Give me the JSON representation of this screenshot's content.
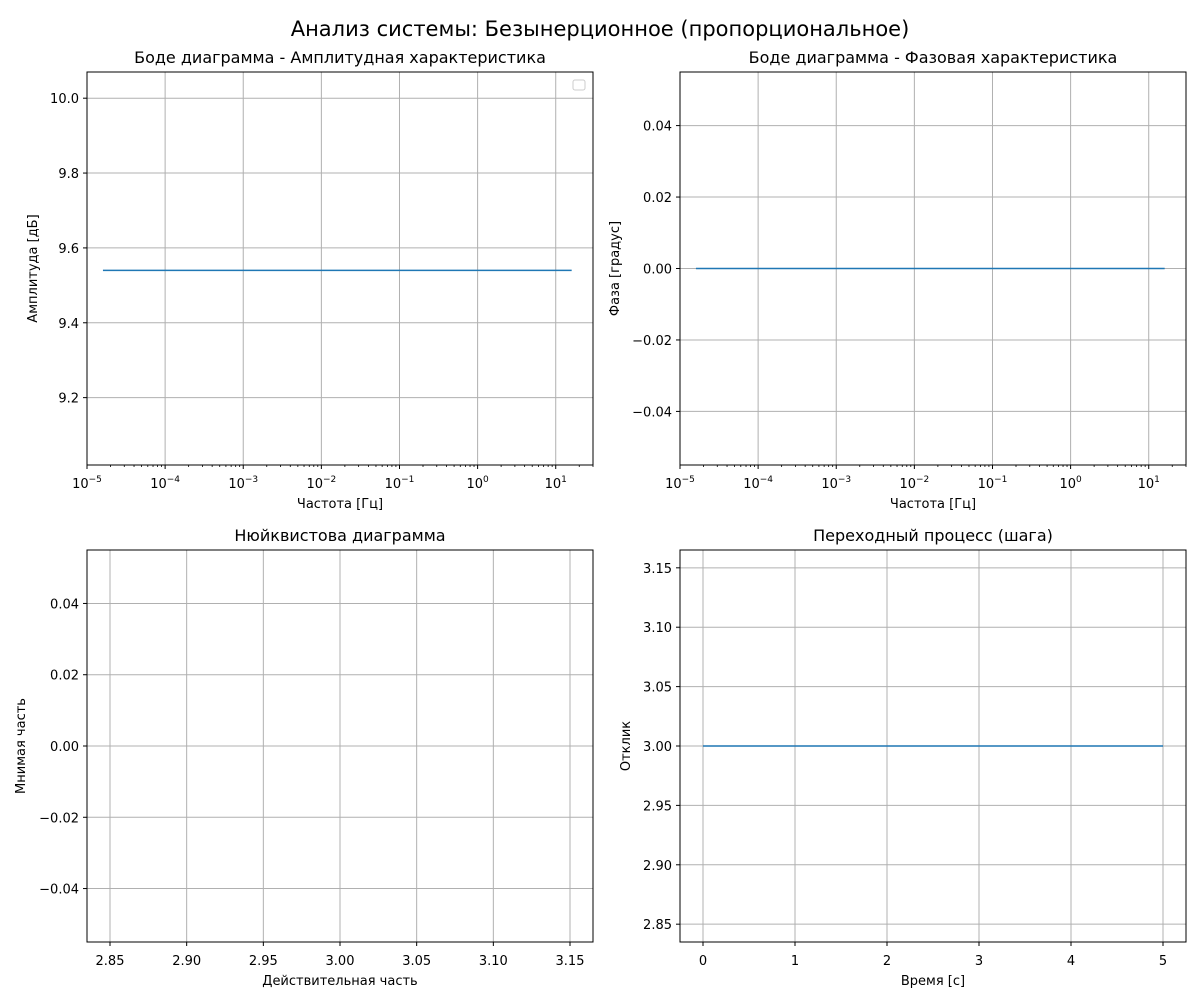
{
  "figure": {
    "title": "Анализ системы: Безынерционное (пропорциональное)"
  },
  "colors": {
    "line": "#1f77b4",
    "grid": "#b0b0b0",
    "axes": "#000000",
    "background": "#ffffff"
  },
  "chart_data": [
    {
      "type": "line",
      "title": "Боде диаграмма - Амплитудная характеристика",
      "xlabel": "Частота [Гц]",
      "ylabel": "Амплитуда [дБ]",
      "xscale": "log",
      "xlim": [
        1e-05,
        30
      ],
      "ylim": [
        9.02,
        10.07
      ],
      "x_ticks": [
        1e-05,
        0.0001,
        0.001,
        0.01,
        0.1,
        1,
        10
      ],
      "x_tick_labels": [
        {
          "base": "10",
          "exp": "−5"
        },
        {
          "base": "10",
          "exp": "−4"
        },
        {
          "base": "10",
          "exp": "−3"
        },
        {
          "base": "10",
          "exp": "−2"
        },
        {
          "base": "10",
          "exp": "−1"
        },
        {
          "base": "10",
          "exp": "0"
        },
        {
          "base": "10",
          "exp": "1"
        }
      ],
      "y_ticks": [
        9.2,
        9.4,
        9.6,
        9.8,
        10.0
      ],
      "y_tick_labels": [
        "9.2",
        "9.4",
        "9.6",
        "9.8",
        "10.0"
      ],
      "grid": true,
      "legend": "top-right",
      "legend_entries": [],
      "series": [
        {
          "x": [
            1.6e-05,
            16
          ],
          "y": [
            9.54,
            9.54
          ]
        }
      ]
    },
    {
      "type": "line",
      "title": "Боде диаграмма - Фазовая характеристика",
      "xlabel": "Частота [Гц]",
      "ylabel": "Фаза [градус]",
      "xscale": "log",
      "xlim": [
        1e-05,
        30
      ],
      "ylim": [
        -0.055,
        0.055
      ],
      "x_ticks": [
        1e-05,
        0.0001,
        0.001,
        0.01,
        0.1,
        1,
        10
      ],
      "x_tick_labels": [
        {
          "base": "10",
          "exp": "−5"
        },
        {
          "base": "10",
          "exp": "−4"
        },
        {
          "base": "10",
          "exp": "−3"
        },
        {
          "base": "10",
          "exp": "−2"
        },
        {
          "base": "10",
          "exp": "−1"
        },
        {
          "base": "10",
          "exp": "0"
        },
        {
          "base": "10",
          "exp": "1"
        }
      ],
      "y_ticks": [
        -0.04,
        -0.02,
        0.0,
        0.02,
        0.04
      ],
      "y_tick_labels": [
        "−0.04",
        "−0.02",
        "0.00",
        "0.02",
        "0.04"
      ],
      "grid": true,
      "series": [
        {
          "x": [
            1.6e-05,
            16
          ],
          "y": [
            0,
            0
          ]
        }
      ]
    },
    {
      "type": "line",
      "title": "Нюйквистова диаграмма",
      "xlabel": "Действительная часть",
      "ylabel": "Мнимая часть",
      "xscale": "linear",
      "xlim": [
        2.835,
        3.165
      ],
      "ylim": [
        -0.055,
        0.055
      ],
      "x_ticks": [
        2.85,
        2.9,
        2.95,
        3.0,
        3.05,
        3.1,
        3.15
      ],
      "x_tick_labels": [
        "2.85",
        "2.90",
        "2.95",
        "3.00",
        "3.05",
        "3.10",
        "3.15"
      ],
      "y_ticks": [
        -0.04,
        -0.02,
        0.0,
        0.02,
        0.04
      ],
      "y_tick_labels": [
        "−0.04",
        "−0.02",
        "0.00",
        "0.02",
        "0.04"
      ],
      "grid": true,
      "series": []
    },
    {
      "type": "line",
      "title": "Переходный процесс (шага)",
      "xlabel": "Время [с]",
      "ylabel": "Отклик",
      "xscale": "linear",
      "xlim": [
        -0.25,
        5.25
      ],
      "ylim": [
        2.835,
        3.165
      ],
      "x_ticks": [
        0,
        1,
        2,
        3,
        4,
        5
      ],
      "x_tick_labels": [
        "0",
        "1",
        "2",
        "3",
        "4",
        "5"
      ],
      "y_ticks": [
        2.85,
        2.9,
        2.95,
        3.0,
        3.05,
        3.1,
        3.15
      ],
      "y_tick_labels": [
        "2.85",
        "2.90",
        "2.95",
        "3.00",
        "3.05",
        "3.10",
        "3.15"
      ],
      "grid": true,
      "series": [
        {
          "x": [
            0,
            5
          ],
          "y": [
            3.0,
            3.0
          ]
        }
      ]
    }
  ]
}
